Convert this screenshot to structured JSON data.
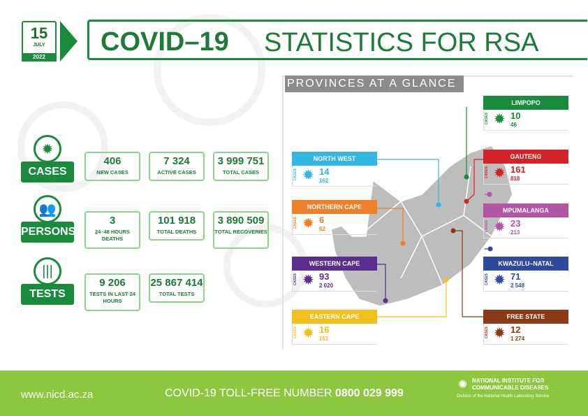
{
  "date": {
    "day": "15",
    "month": "JULY",
    "year": "2022"
  },
  "title": {
    "bold": "COVID–19",
    "rest": "STATISTICS FOR RSA"
  },
  "categories": {
    "cases": {
      "label": "CASES",
      "stats": [
        {
          "value": "406",
          "label": "NEW CASES"
        },
        {
          "value": "7 324",
          "label": "ACTIVE CASES"
        },
        {
          "value": "3 999 751",
          "label": "TOTAL CASES"
        }
      ]
    },
    "persons": {
      "label": "PERSONS",
      "stats": [
        {
          "value": "3",
          "label": "24–48 HOURS DEATHS"
        },
        {
          "value": "101 918",
          "label": "TOTAL DEATHS"
        },
        {
          "value": "3 890 509",
          "label": "TOTAL RECOVERIES"
        }
      ]
    },
    "tests": {
      "label": "TESTS",
      "stats": [
        {
          "value": "9 206",
          "label": "TESTS IN LAST 24 HOURS"
        },
        {
          "value": "25 867 414",
          "label": "TOTAL TESTS"
        }
      ]
    }
  },
  "provinces_header": "PROVINCES AT A GLANCE",
  "cases_label": "CASES",
  "provinces": [
    {
      "name": "LIMPOPO",
      "new": "10",
      "total": "46",
      "color": "#1a8a3c"
    },
    {
      "name": "NORTH WEST",
      "new": "14",
      "total": "162",
      "color": "#34b6e4"
    },
    {
      "name": "GAUTENG",
      "new": "161",
      "total": "818",
      "color": "#d2232a"
    },
    {
      "name": "NORTHERN CAPE",
      "new": "6",
      "total": "62",
      "color": "#f07f2a"
    },
    {
      "name": "MPUMALANGA",
      "new": "23",
      "total": "213",
      "color": "#b155a4"
    },
    {
      "name": "WESTERN CAPE",
      "new": "93",
      "total": "2 020",
      "color": "#5c2d91"
    },
    {
      "name": "KWAZULU–NATAL",
      "new": "71",
      "total": "2 548",
      "color": "#2e4a9e"
    },
    {
      "name": "EASTERN CAPE",
      "new": "16",
      "total": "151",
      "color": "#f2c01e"
    },
    {
      "name": "FREE STATE",
      "new": "12",
      "total": "1 274",
      "color": "#8a3a16"
    }
  ],
  "footer": {
    "url": "www.nicd.ac.za",
    "toll_label": "COVID-19 TOLL-FREE NUMBER",
    "toll_number": "0800 029 999",
    "org_name": "NATIONAL INSTITUTE FOR COMMUNICABLE DISEASES",
    "org_sub": "Division of the National Health Laboratory Service"
  }
}
